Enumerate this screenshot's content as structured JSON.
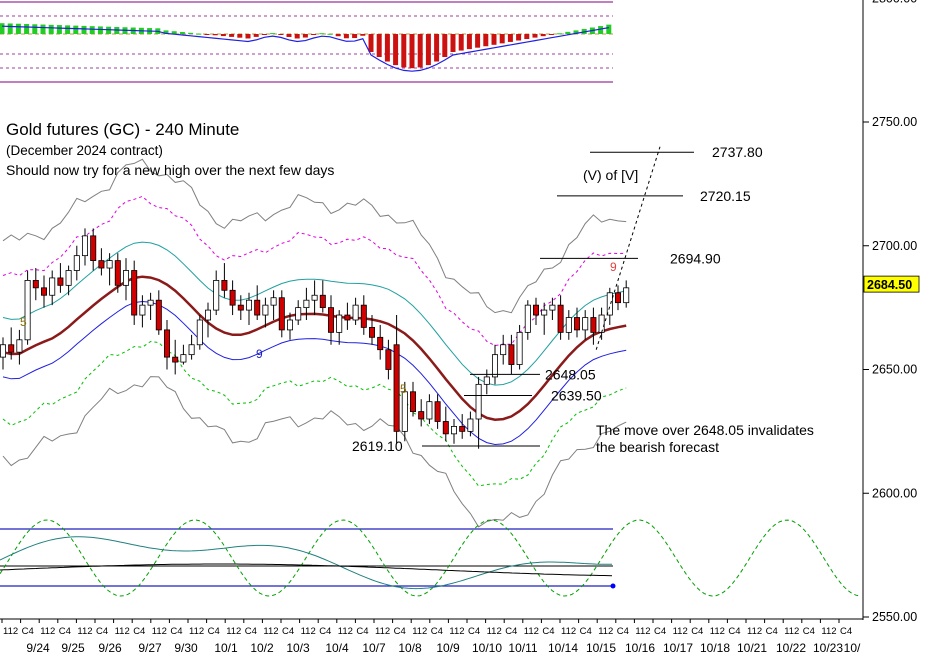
{
  "chart_data": {
    "type": "candlestick",
    "title": "Gold futures (GC) - 240 Minute",
    "subtitle": "(December 2024 contract)",
    "note": "Should now try for a new high over the next few days",
    "ylim": [
      2550,
      2800
    ],
    "yticks": [
      "2800.00",
      "2750.00",
      "2700.00",
      "2650.00",
      "2600.00",
      "2550.00"
    ],
    "current_price": "2684.50",
    "date_labels": [
      "9/24",
      "9/25",
      "9/26",
      "9/27",
      "9/30",
      "10/1",
      "10/2",
      "10/3",
      "10/4",
      "10/7",
      "10/8",
      "10/9",
      "10/10",
      "10/11",
      "10/14",
      "10/15",
      "10/16",
      "10/17",
      "10/18",
      "10/21",
      "10/22",
      "10/23",
      "10/"
    ],
    "session_labels": [
      "112",
      "C4",
      "112",
      "C4",
      "112",
      "C4",
      "112",
      "C4",
      "112",
      "C4",
      "112",
      "C4",
      "112",
      "C4",
      "112",
      "C4",
      "112",
      "C4",
      "112",
      "C4",
      "112",
      "C4",
      "112",
      "C4",
      "112",
      "C4",
      "112",
      "C4",
      "112",
      "C4",
      "112",
      "C4",
      "112",
      "C4",
      "112",
      "C4",
      "112",
      "C4",
      "112",
      "C4",
      "112",
      "C4",
      "112",
      "C4",
      "112",
      "C4"
    ],
    "levels": [
      {
        "label": "2737.80",
        "value": 2737.8
      },
      {
        "label": "2720.15",
        "value": 2720.15
      },
      {
        "label": "2694.90",
        "value": 2694.9
      },
      {
        "label": "2648.05",
        "value": 2648.05
      },
      {
        "label": "2639.50",
        "value": 2639.5
      },
      {
        "label": "2619.10",
        "value": 2619.1
      }
    ],
    "wave_label": "(V) of [V]",
    "annotation": [
      "The move over 2648.05 invalidates",
      "the bearish forecast"
    ],
    "count_labels": [
      "5",
      "9",
      "5",
      "9"
    ],
    "candles": [
      {
        "o": 2655,
        "h": 2663,
        "l": 2650,
        "c": 2660
      },
      {
        "o": 2660,
        "h": 2667,
        "l": 2654,
        "c": 2657
      },
      {
        "o": 2657,
        "h": 2666,
        "l": 2652,
        "c": 2662
      },
      {
        "o": 2662,
        "h": 2690,
        "l": 2660,
        "c": 2686
      },
      {
        "o": 2686,
        "h": 2691,
        "l": 2678,
        "c": 2683
      },
      {
        "o": 2683,
        "h": 2688,
        "l": 2675,
        "c": 2680
      },
      {
        "o": 2680,
        "h": 2690,
        "l": 2676,
        "c": 2687
      },
      {
        "o": 2687,
        "h": 2693,
        "l": 2681,
        "c": 2684
      },
      {
        "o": 2684,
        "h": 2692,
        "l": 2680,
        "c": 2690
      },
      {
        "o": 2690,
        "h": 2700,
        "l": 2686,
        "c": 2696
      },
      {
        "o": 2696,
        "h": 2707,
        "l": 2692,
        "c": 2704
      },
      {
        "o": 2704,
        "h": 2707,
        "l": 2690,
        "c": 2694
      },
      {
        "o": 2694,
        "h": 2699,
        "l": 2688,
        "c": 2691
      },
      {
        "o": 2691,
        "h": 2697,
        "l": 2684,
        "c": 2694
      },
      {
        "o": 2694,
        "h": 2697,
        "l": 2681,
        "c": 2684
      },
      {
        "o": 2684,
        "h": 2695,
        "l": 2678,
        "c": 2690
      },
      {
        "o": 2690,
        "h": 2694,
        "l": 2668,
        "c": 2672
      },
      {
        "o": 2672,
        "h": 2680,
        "l": 2667,
        "c": 2676
      },
      {
        "o": 2676,
        "h": 2681,
        "l": 2670,
        "c": 2678
      },
      {
        "o": 2678,
        "h": 2682,
        "l": 2664,
        "c": 2666
      },
      {
        "o": 2666,
        "h": 2670,
        "l": 2650,
        "c": 2655
      },
      {
        "o": 2655,
        "h": 2662,
        "l": 2648,
        "c": 2653
      },
      {
        "o": 2653,
        "h": 2660,
        "l": 2652,
        "c": 2656
      },
      {
        "o": 2656,
        "h": 2664,
        "l": 2654,
        "c": 2660
      },
      {
        "o": 2660,
        "h": 2672,
        "l": 2658,
        "c": 2670
      },
      {
        "o": 2670,
        "h": 2677,
        "l": 2663,
        "c": 2674
      },
      {
        "o": 2674,
        "h": 2690,
        "l": 2672,
        "c": 2686
      },
      {
        "o": 2686,
        "h": 2693,
        "l": 2679,
        "c": 2682
      },
      {
        "o": 2682,
        "h": 2686,
        "l": 2672,
        "c": 2676
      },
      {
        "o": 2676,
        "h": 2680,
        "l": 2670,
        "c": 2674
      },
      {
        "o": 2674,
        "h": 2681,
        "l": 2668,
        "c": 2678
      },
      {
        "o": 2678,
        "h": 2684,
        "l": 2670,
        "c": 2672
      },
      {
        "o": 2672,
        "h": 2679,
        "l": 2667,
        "c": 2676
      },
      {
        "o": 2676,
        "h": 2682,
        "l": 2670,
        "c": 2679
      },
      {
        "o": 2679,
        "h": 2682,
        "l": 2663,
        "c": 2666
      },
      {
        "o": 2666,
        "h": 2673,
        "l": 2662,
        "c": 2670
      },
      {
        "o": 2670,
        "h": 2678,
        "l": 2668,
        "c": 2675
      },
      {
        "o": 2675,
        "h": 2683,
        "l": 2670,
        "c": 2678
      },
      {
        "o": 2678,
        "h": 2686,
        "l": 2672,
        "c": 2680
      },
      {
        "o": 2680,
        "h": 2686,
        "l": 2673,
        "c": 2675
      },
      {
        "o": 2675,
        "h": 2680,
        "l": 2660,
        "c": 2665
      },
      {
        "o": 2665,
        "h": 2674,
        "l": 2660,
        "c": 2672
      },
      {
        "o": 2672,
        "h": 2677,
        "l": 2666,
        "c": 2670
      },
      {
        "o": 2670,
        "h": 2679,
        "l": 2668,
        "c": 2676
      },
      {
        "o": 2676,
        "h": 2680,
        "l": 2664,
        "c": 2667
      },
      {
        "o": 2667,
        "h": 2672,
        "l": 2660,
        "c": 2663
      },
      {
        "o": 2663,
        "h": 2668,
        "l": 2654,
        "c": 2658
      },
      {
        "o": 2658,
        "h": 2662,
        "l": 2646,
        "c": 2650
      },
      {
        "o": 2660,
        "h": 2672,
        "l": 2620,
        "c": 2625
      },
      {
        "o": 2625,
        "h": 2645,
        "l": 2621,
        "c": 2641
      },
      {
        "o": 2641,
        "h": 2645,
        "l": 2631,
        "c": 2633
      },
      {
        "o": 2633,
        "h": 2638,
        "l": 2627,
        "c": 2630
      },
      {
        "o": 2630,
        "h": 2640,
        "l": 2628,
        "c": 2637
      },
      {
        "o": 2637,
        "h": 2640,
        "l": 2626,
        "c": 2629
      },
      {
        "o": 2629,
        "h": 2635,
        "l": 2621,
        "c": 2624
      },
      {
        "o": 2624,
        "h": 2630,
        "l": 2620,
        "c": 2627
      },
      {
        "o": 2627,
        "h": 2632,
        "l": 2622,
        "c": 2625
      },
      {
        "o": 2625,
        "h": 2633,
        "l": 2623,
        "c": 2630
      },
      {
        "o": 2630,
        "h": 2647,
        "l": 2618,
        "c": 2644
      },
      {
        "o": 2644,
        "h": 2650,
        "l": 2640,
        "c": 2647
      },
      {
        "o": 2647,
        "h": 2660,
        "l": 2644,
        "c": 2656
      },
      {
        "o": 2656,
        "h": 2664,
        "l": 2652,
        "c": 2660
      },
      {
        "o": 2660,
        "h": 2664,
        "l": 2648,
        "c": 2652
      },
      {
        "o": 2652,
        "h": 2668,
        "l": 2650,
        "c": 2665
      },
      {
        "o": 2665,
        "h": 2678,
        "l": 2662,
        "c": 2676
      },
      {
        "o": 2676,
        "h": 2679,
        "l": 2668,
        "c": 2672
      },
      {
        "o": 2672,
        "h": 2677,
        "l": 2664,
        "c": 2674
      },
      {
        "o": 2674,
        "h": 2679,
        "l": 2670,
        "c": 2676
      },
      {
        "o": 2676,
        "h": 2680,
        "l": 2662,
        "c": 2665
      },
      {
        "o": 2665,
        "h": 2674,
        "l": 2662,
        "c": 2671
      },
      {
        "o": 2671,
        "h": 2675,
        "l": 2663,
        "c": 2666
      },
      {
        "o": 2666,
        "h": 2674,
        "l": 2662,
        "c": 2671
      },
      {
        "o": 2671,
        "h": 2675,
        "l": 2660,
        "c": 2665
      },
      {
        "o": 2665,
        "h": 2675,
        "l": 2662,
        "c": 2672
      },
      {
        "o": 2672,
        "h": 2683,
        "l": 2668,
        "c": 2681
      },
      {
        "o": 2681,
        "h": 2684,
        "l": 2674,
        "c": 2677
      },
      {
        "o": 2677,
        "h": 2686,
        "l": 2675,
        "c": 2683
      }
    ]
  }
}
